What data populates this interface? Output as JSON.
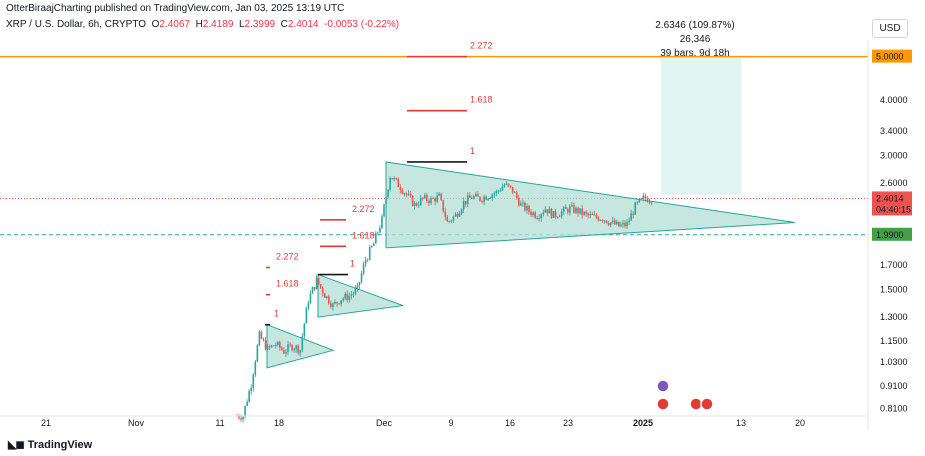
{
  "header": {
    "publisher": "OtterBiraajCharting published on TradingView.com, Jan 03, 2025 13:19 UTC",
    "symbol": "XRP / U.S. Dollar, 6h, CRYPTO",
    "open_label": "O",
    "open": "2.4067",
    "high_label": "H",
    "high": "2.4189",
    "low_label": "L",
    "low": "2.3999",
    "close_label": "C",
    "close": "2.4014",
    "change": "-0.0053 (-0.22%)",
    "currency": "USD"
  },
  "measure": {
    "line1": "2.6346 (109.87%) 26,346",
    "line2": "39 bars, 9d 18h"
  },
  "branding": "TradingView",
  "colors": {
    "up": "#26a69a",
    "down": "#ef5350",
    "triangle_fill": "#b2dfd4",
    "target_box": "#dff5f2",
    "target_line": "#ff9800",
    "support_line": "#26a69a",
    "price_line": "#ef5350",
    "fib": "#e53935"
  },
  "chart_data": {
    "type": "candlestick",
    "y_scale": "log",
    "ylim": [
      0.76,
      6.4
    ],
    "y_ticks": [
      "4.0000",
      "3.4000",
      "3.0000",
      "2.6000",
      "1.7000",
      "1.5000",
      "1.3000",
      "1.1500",
      "1.0300",
      "0.9100",
      "0.8100"
    ],
    "x_ticks": [
      "21",
      "Nov",
      "11",
      "18",
      "Dec",
      "9",
      "16",
      "23",
      "2025",
      "13",
      "20"
    ],
    "price_labels": {
      "target": "5.0000",
      "current": "2.4014",
      "countdown": "04:40:15",
      "support": "1.9900"
    },
    "fib_levels": [
      {
        "label": "2.272",
        "value": 5.0
      },
      {
        "label": "1.618",
        "value": 3.78
      },
      {
        "label": "1",
        "value": 2.9
      },
      {
        "label": "2.272",
        "value": 2.15
      },
      {
        "label": "1.618",
        "value": 1.875
      },
      {
        "label": "2.272",
        "value": 1.68
      },
      {
        "label": "1.618",
        "value": 1.46
      },
      {
        "label": "1",
        "value": 1.62
      },
      {
        "label": "1",
        "value": 1.25
      }
    ],
    "price_path": [
      [
        "Nov 14",
        0.78
      ],
      [
        "Nov 15",
        0.92
      ],
      [
        "Nov 16",
        1.18
      ],
      [
        "Nov 17",
        1.1
      ],
      [
        "Nov 18",
        1.13
      ],
      [
        "Nov 19",
        1.09
      ],
      [
        "Nov 20",
        1.12
      ],
      [
        "Nov 21",
        1.1
      ],
      [
        "Nov 22",
        1.42
      ],
      [
        "Nov 23",
        1.57
      ],
      [
        "Nov 24",
        1.46
      ],
      [
        "Nov 25",
        1.38
      ],
      [
        "Nov 26",
        1.43
      ],
      [
        "Nov 27",
        1.45
      ],
      [
        "Nov 28",
        1.5
      ],
      [
        "Nov 29",
        1.75
      ],
      [
        "Nov 30",
        1.9
      ],
      [
        "Dec 1",
        2.15
      ],
      [
        "Dec 2",
        2.7
      ],
      [
        "Dec 3",
        2.58
      ],
      [
        "Dec 4",
        2.45
      ],
      [
        "Dec 5",
        2.32
      ],
      [
        "Dec 6",
        2.4
      ],
      [
        "Dec 7",
        2.38
      ],
      [
        "Dec 8",
        2.42
      ],
      [
        "Dec 9",
        2.12
      ],
      [
        "Dec 10",
        2.2
      ],
      [
        "Dec 11",
        2.35
      ],
      [
        "Dec 12",
        2.42
      ],
      [
        "Dec 13",
        2.4
      ],
      [
        "Dec 14",
        2.44
      ],
      [
        "Dec 15",
        2.48
      ],
      [
        "Dec 16",
        2.58
      ],
      [
        "Dec 17",
        2.5
      ],
      [
        "Dec 18",
        2.32
      ],
      [
        "Dec 19",
        2.25
      ],
      [
        "Dec 20",
        2.2
      ],
      [
        "Dec 21",
        2.28
      ],
      [
        "Dec 22",
        2.2
      ],
      [
        "Dec 23",
        2.24
      ],
      [
        "Dec 24",
        2.28
      ],
      [
        "Dec 25",
        2.25
      ],
      [
        "Dec 26",
        2.2
      ],
      [
        "Dec 27",
        2.18
      ],
      [
        "Dec 28",
        2.17
      ],
      [
        "Dec 29",
        2.12
      ],
      [
        "Dec 30",
        2.08
      ],
      [
        "Dec 31",
        2.1
      ],
      [
        "Jan 1",
        2.3
      ],
      [
        "Jan 2",
        2.4
      ],
      [
        "Jan 3",
        2.4014
      ]
    ]
  }
}
